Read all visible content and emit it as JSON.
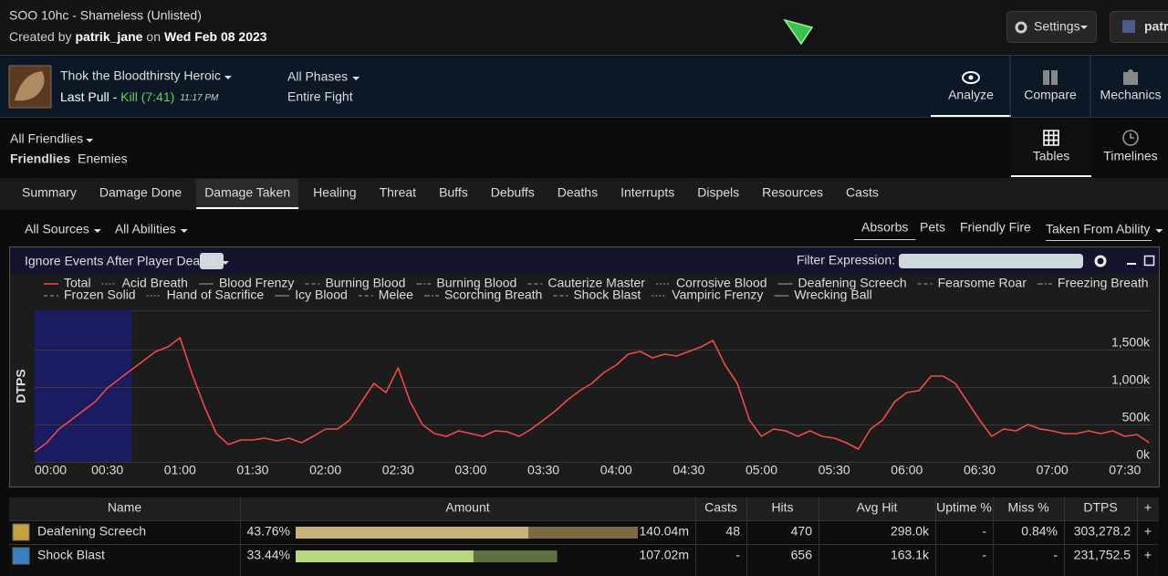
{
  "header": {
    "title": "SOO 10hc - Shameless (Unlisted)",
    "created_by": "Created by",
    "author": "patrik_jane",
    "on": "on",
    "date": "Wed Feb 08 2023",
    "settings": "Settings",
    "user": "patr"
  },
  "fight": {
    "boss": "Thok the Bloodthirsty Heroic",
    "pull": "Last Pull - ",
    "result": "Kill (7:41)",
    "time": "11:17 PM",
    "phases": "All Phases",
    "phase_range": "Entire Fight"
  },
  "views": [
    "Analyze",
    "Compare",
    "Mechanics"
  ],
  "actor_filter": {
    "title": "All Friendlies",
    "options": [
      "Friendlies",
      "Enemies"
    ]
  },
  "display_modes": [
    "Tables",
    "Timelines"
  ],
  "tabs": [
    "Summary",
    "Damage Done",
    "Damage Taken",
    "Healing",
    "Threat",
    "Buffs",
    "Debuffs",
    "Deaths",
    "Interrupts",
    "Dispels",
    "Resources",
    "Casts"
  ],
  "filters": {
    "left": [
      "All Sources",
      "All Abilities"
    ],
    "right": [
      "Absorbs",
      "Pets",
      "Friendly Fire"
    ],
    "taken": "Taken From Ability"
  },
  "chart_panel": {
    "ignore": "Ignore Events After Player Deaths",
    "filter_label": "Filter Expression:"
  },
  "chart_data": {
    "type": "line",
    "y_label": "DTPS",
    "x": [
      0,
      5,
      10,
      15,
      20,
      25,
      30,
      35,
      40,
      45,
      50,
      55,
      60,
      65,
      70,
      75,
      80,
      85,
      90,
      95,
      100,
      105,
      110,
      115,
      120,
      125,
      130,
      135,
      140,
      145,
      150,
      155,
      160,
      165,
      170,
      175,
      180,
      185,
      190,
      195,
      200,
      205,
      210,
      215,
      220,
      225,
      230,
      235,
      240,
      245,
      250,
      255,
      260,
      265,
      270,
      275,
      280,
      285,
      290,
      295,
      300,
      305,
      310,
      315,
      320,
      325,
      330,
      335,
      340,
      345,
      350,
      355,
      360,
      365,
      370,
      375,
      380,
      385,
      390,
      395,
      400,
      405,
      410,
      415,
      420,
      425,
      430,
      435,
      440,
      445,
      450,
      455,
      460
    ],
    "series": [
      {
        "name": "Total",
        "color": "#ee4b45",
        "values": [
          134000,
          256000,
          439000,
          560000,
          683000,
          805000,
          988000,
          1110000,
          1232000,
          1354000,
          1476000,
          1537000,
          1659000,
          1171000,
          744000,
          378000,
          232000,
          293000,
          293000,
          317000,
          280000,
          317000,
          256000,
          341000,
          439000,
          439000,
          560000,
          805000,
          1049000,
          927000,
          1256000,
          805000,
          500000,
          378000,
          341000,
          415000,
          378000,
          341000,
          415000,
          402000,
          341000,
          439000,
          560000,
          683000,
          829000,
          951000,
          1049000,
          1195000,
          1293000,
          1439000,
          1476000,
          1390000,
          1439000,
          1415000,
          1476000,
          1537000,
          1622000,
          1293000,
          1049000,
          560000,
          341000,
          439000,
          415000,
          341000,
          415000,
          341000,
          317000,
          256000,
          171000,
          439000,
          560000,
          805000,
          927000,
          951000,
          1146000,
          1146000,
          1049000,
          805000,
          560000,
          341000,
          439000,
          415000,
          500000,
          439000,
          415000,
          378000,
          378000,
          415000,
          378000,
          415000,
          341000,
          366000,
          256000
        ]
      }
    ],
    "legend_inactive": [
      "Acid Breath",
      "Blood Frenzy",
      "Burning Blood",
      "Burning Blood",
      "Cauterize Master",
      "Corrosive Blood",
      "Deafening Screech",
      "Fearsome Roar",
      "Freezing Breath",
      "Frozen Solid",
      "Hand of Sacrifice",
      "Icy Blood",
      "Melee",
      "Scorching Breath",
      "Shock Blast",
      "Vampiric Frenzy",
      "Wrecking Ball"
    ],
    "highlight": [
      0,
      40
    ],
    "xlim": [
      0,
      461
    ],
    "ylim": [
      0,
      2000000
    ],
    "xticks": [
      {
        "value": 0,
        "label": "00:00"
      },
      {
        "value": 30,
        "label": "00:30"
      },
      {
        "value": 60,
        "label": "01:00"
      },
      {
        "value": 90,
        "label": "01:30"
      },
      {
        "value": 120,
        "label": "02:00"
      },
      {
        "value": 150,
        "label": "02:30"
      },
      {
        "value": 180,
        "label": "03:00"
      },
      {
        "value": 210,
        "label": "03:30"
      },
      {
        "value": 240,
        "label": "04:00"
      },
      {
        "value": 270,
        "label": "04:30"
      },
      {
        "value": 300,
        "label": "05:00"
      },
      {
        "value": 330,
        "label": "05:30"
      },
      {
        "value": 360,
        "label": "06:00"
      },
      {
        "value": 390,
        "label": "06:30"
      },
      {
        "value": 420,
        "label": "07:00"
      },
      {
        "value": 450,
        "label": "07:30"
      }
    ],
    "yticks": [
      {
        "value": 0,
        "label": "0k"
      },
      {
        "value": 500000,
        "label": "500k"
      },
      {
        "value": 1000000,
        "label": "1,000k"
      },
      {
        "value": 1500000,
        "label": "1,500k"
      }
    ],
    "grid": true
  },
  "table": {
    "columns": [
      "Name",
      "Amount",
      "Casts",
      "Hits",
      "Avg Hit",
      "Uptime %",
      "Miss %",
      "DTPS",
      "+"
    ],
    "rows": [
      {
        "color": "#f0d06a",
        "bar": "#c9b27a",
        "bar_dark": "#7b6b45",
        "cells": [
          "Deafening Screech",
          "43.76%",
          "140.04m",
          "48",
          "470",
          "298.0k",
          "-",
          "0.84%",
          "303,278.2",
          "+"
        ]
      },
      {
        "color": "#a8e870",
        "bar": "#b5d87c",
        "bar_dark": "#5e7141",
        "cells": [
          "Shock Blast",
          "33.44%",
          "107.02m",
          "-",
          "656",
          "163.1k",
          "-",
          "-",
          "231,752.5",
          "+"
        ]
      }
    ]
  }
}
